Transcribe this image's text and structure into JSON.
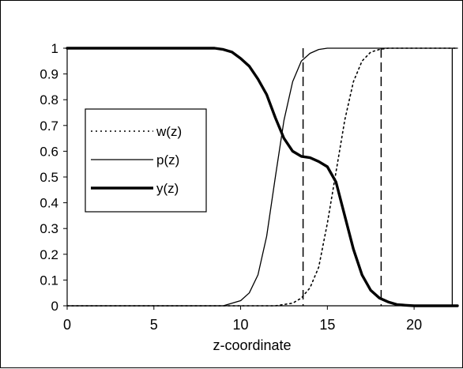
{
  "chart_data": {
    "type": "line",
    "xlabel": "z-coordinate",
    "ylabel": "",
    "xlim": [
      0,
      22.5
    ],
    "ylim": [
      0,
      1
    ],
    "xticks": [
      0,
      5,
      10,
      15,
      20
    ],
    "yticks": [
      0,
      0.1,
      0.2,
      0.3,
      0.4,
      0.5,
      0.6,
      0.7,
      0.8,
      0.9,
      1
    ],
    "grid": false,
    "legend_position": "left-center",
    "series": [
      {
        "name": "w(z)",
        "style": "dotted",
        "x": [
          0,
          12,
          13,
          13.5,
          14,
          14.5,
          15,
          15.5,
          16,
          16.5,
          17,
          17.5,
          18,
          18.5,
          22.5
        ],
        "y": [
          0,
          0,
          0.01,
          0.03,
          0.07,
          0.15,
          0.32,
          0.52,
          0.72,
          0.87,
          0.95,
          0.985,
          0.995,
          1.0,
          1.0
        ]
      },
      {
        "name": "p(z)",
        "style": "solid-thin",
        "x": [
          0,
          9,
          9.5,
          10,
          10.5,
          11,
          11.5,
          12,
          12.5,
          13,
          13.5,
          14,
          14.5,
          15,
          22.5
        ],
        "y": [
          0,
          0,
          0.01,
          0.02,
          0.05,
          0.12,
          0.27,
          0.5,
          0.72,
          0.87,
          0.95,
          0.98,
          0.995,
          1.0,
          1.0
        ]
      },
      {
        "name": "y(z)",
        "style": "solid-thick",
        "x": [
          0,
          8.5,
          9,
          9.5,
          10,
          10.5,
          11,
          11.5,
          12,
          12.5,
          13,
          13.5,
          14,
          14.5,
          15,
          15.5,
          16,
          16.5,
          17,
          17.5,
          18,
          18.5,
          19,
          19.5,
          20,
          22.5
        ],
        "y": [
          1,
          1,
          0.995,
          0.985,
          0.96,
          0.93,
          0.88,
          0.82,
          0.73,
          0.65,
          0.6,
          0.58,
          0.575,
          0.56,
          0.54,
          0.48,
          0.35,
          0.22,
          0.12,
          0.06,
          0.03,
          0.015,
          0.005,
          0.002,
          0.0,
          0.0
        ]
      }
    ],
    "vertical_lines": [
      {
        "x": 13.6,
        "style": "dashed"
      },
      {
        "x": 18.1,
        "style": "dashed"
      },
      {
        "x": 22.2,
        "style": "solid"
      }
    ]
  }
}
